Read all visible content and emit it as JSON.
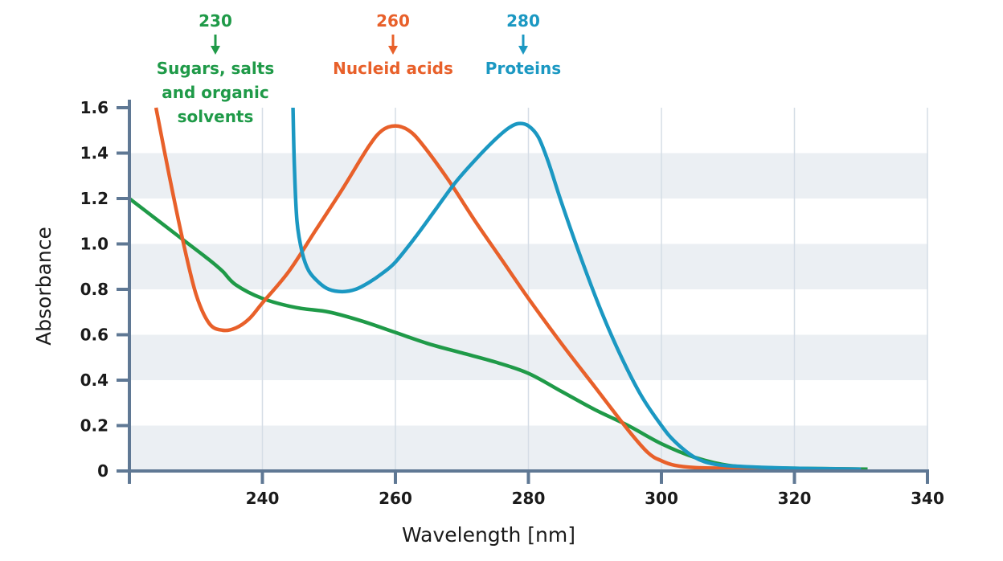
{
  "chart_data": {
    "type": "line",
    "title": "",
    "xlabel": "Wavelength [nm]",
    "ylabel": "Absorbance",
    "xlim": [
      220,
      340
    ],
    "ylim": [
      0,
      1.6
    ],
    "xticks": [
      240,
      260,
      280,
      300,
      320,
      340
    ],
    "xtick_labels": [
      "240",
      "260",
      "280",
      "300",
      "320",
      "340"
    ],
    "yticks": [
      0,
      0.2,
      0.4,
      0.6,
      0.8,
      1.0,
      1.2,
      1.4,
      1.6
    ],
    "ytick_labels": [
      "0",
      "0.2",
      "0.4",
      "0.6",
      "0.8",
      "1.0",
      "1.2",
      "1.4",
      "1.6"
    ],
    "grid": "vertical lines at x ticks; alternating horizontal bands",
    "legend": "none (annotations at top)",
    "colors": {
      "axis": "#5f7894",
      "grid": "#d5dde6",
      "band": "#ebeff3"
    },
    "series": [
      {
        "name": "Sugars, salts and organic solvents",
        "color": "#1f9a48",
        "x": [
          220,
          224,
          228,
          232,
          234,
          236,
          240,
          245,
          250,
          255,
          260,
          265,
          270,
          275,
          280,
          285,
          290,
          295,
          300,
          305,
          310,
          315,
          320,
          325,
          331
        ],
        "y": [
          1.2,
          1.11,
          1.02,
          0.93,
          0.88,
          0.82,
          0.76,
          0.72,
          0.7,
          0.66,
          0.61,
          0.56,
          0.52,
          0.48,
          0.43,
          0.35,
          0.27,
          0.2,
          0.12,
          0.06,
          0.025,
          0.015,
          0.012,
          0.01,
          0.008
        ]
      },
      {
        "name": "Nucleid acids",
        "color": "#e8602a",
        "x": [
          224,
          226,
          228,
          230,
          232,
          234,
          236,
          238,
          240,
          244,
          248,
          252,
          256,
          258,
          260,
          262,
          264,
          268,
          272,
          276,
          280,
          285,
          290,
          295,
          298,
          300,
          302,
          305,
          310,
          320,
          330
        ],
        "y": [
          1.6,
          1.3,
          1.02,
          0.78,
          0.65,
          0.62,
          0.63,
          0.67,
          0.74,
          0.88,
          1.06,
          1.24,
          1.43,
          1.5,
          1.52,
          1.5,
          1.44,
          1.28,
          1.1,
          0.93,
          0.76,
          0.56,
          0.37,
          0.18,
          0.08,
          0.045,
          0.025,
          0.015,
          0.012,
          0.01,
          0.008
        ]
      },
      {
        "name": "Proteins",
        "color": "#1b98c2",
        "x": [
          244.6,
          244.8,
          245.2,
          246,
          247,
          248.5,
          250,
          252,
          254,
          256,
          258,
          260,
          263,
          266,
          269,
          272,
          275,
          277,
          278.5,
          280,
          281.5,
          283,
          285,
          288,
          291,
          294,
          297,
          300,
          302,
          305,
          308,
          312,
          320,
          330
        ],
        "y": [
          1.6,
          1.35,
          1.1,
          0.96,
          0.88,
          0.83,
          0.8,
          0.79,
          0.8,
          0.83,
          0.87,
          0.92,
          1.03,
          1.15,
          1.27,
          1.37,
          1.46,
          1.51,
          1.53,
          1.52,
          1.47,
          1.36,
          1.18,
          0.93,
          0.7,
          0.5,
          0.33,
          0.2,
          0.13,
          0.06,
          0.03,
          0.02,
          0.012,
          0.008
        ]
      }
    ],
    "annotations": [
      {
        "value": "230",
        "label_lines": [
          "Sugars, salts",
          "and organic",
          "solvents"
        ],
        "color": "#1f9a48",
        "x": 230
      },
      {
        "value": "260",
        "label_lines": [
          "Nucleid acids"
        ],
        "color": "#e8602a",
        "x": 260
      },
      {
        "value": "280",
        "label_lines": [
          "Proteins"
        ],
        "color": "#1b98c2",
        "x": 280
      }
    ]
  }
}
